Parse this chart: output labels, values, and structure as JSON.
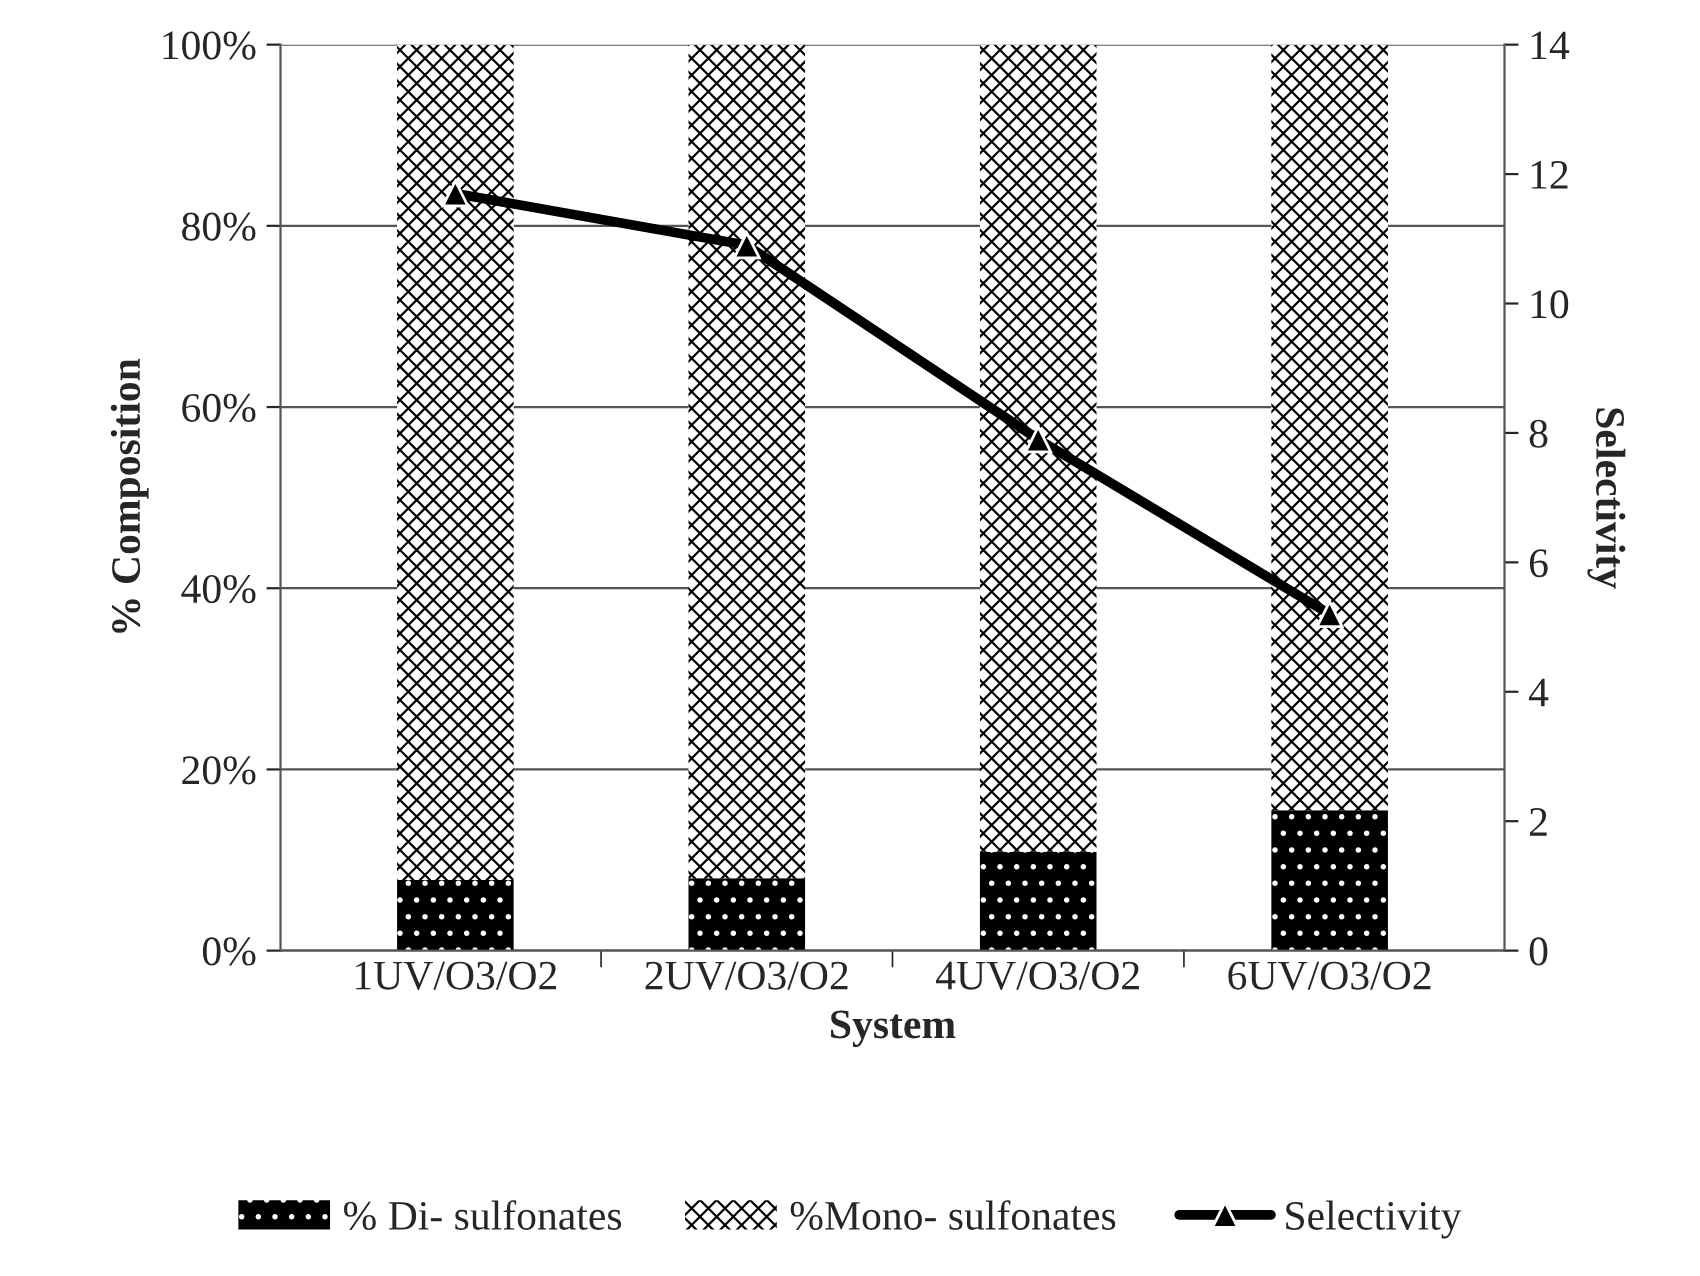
{
  "chart_data": {
    "type": "bar",
    "stacked": true,
    "categories": [
      "1UV/O3/O2",
      "2UV/O3/O2",
      "4UV/O3/O2",
      "6UV/O3/O2"
    ],
    "xlabel": "System",
    "ylabel": "% Composition",
    "y2label": "Selectivity",
    "ylim": [
      0,
      100
    ],
    "yticks": [
      {
        "value": 0,
        "label": "0%"
      },
      {
        "value": 20,
        "label": "20%"
      },
      {
        "value": 40,
        "label": "40%"
      },
      {
        "value": 60,
        "label": "60%"
      },
      {
        "value": 80,
        "label": "80%"
      },
      {
        "value": 100,
        "label": "100%"
      }
    ],
    "y2lim": [
      0,
      14
    ],
    "y2ticks": [
      0,
      2,
      4,
      6,
      8,
      10,
      12,
      14
    ],
    "grid": "y",
    "legend": "bottom",
    "series": [
      {
        "name": "% Di- sulfonates",
        "color": "#000000",
        "values": [
          7.8,
          8.0,
          10.9,
          15.5
        ]
      },
      {
        "name": "%Mono- sulfonates",
        "color": "#ffffff",
        "values": [
          92.2,
          92.0,
          89.1,
          84.5
        ]
      },
      {
        "name": "Selectivity",
        "type": "line",
        "axis": "y2",
        "color": "#000000",
        "marker": "triangle",
        "values": [
          11.7,
          10.9,
          7.9,
          5.2
        ]
      }
    ]
  }
}
